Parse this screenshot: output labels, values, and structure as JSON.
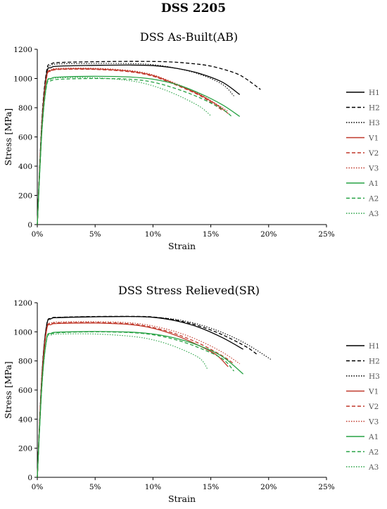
{
  "main_title": "DSS 2205",
  "chart_data": [
    {
      "type": "line",
      "title": "DSS As-Built(AB)",
      "xlabel": "Strain",
      "ylabel": "Stress [MPa]",
      "xlim": [
        0,
        0.25
      ],
      "ylim": [
        0,
        1200
      ],
      "x_ticks": [
        "0%",
        "5%",
        "10%",
        "15%",
        "20%",
        "25%"
      ],
      "y_ticks": [
        "0",
        "200",
        "400",
        "600",
        "800",
        "1000",
        "1200"
      ],
      "grid": false,
      "legend": "right",
      "series": [
        {
          "name": "H1",
          "color": "#000000",
          "dash": "solid",
          "points": [
            [
              0,
              0
            ],
            [
              0.004,
              700
            ],
            [
              0.008,
              1030
            ],
            [
              0.012,
              1075
            ],
            [
              0.02,
              1085
            ],
            [
              0.05,
              1090
            ],
            [
              0.08,
              1092
            ],
            [
              0.1,
              1088
            ],
            [
              0.12,
              1070
            ],
            [
              0.14,
              1035
            ],
            [
              0.16,
              975
            ],
            [
              0.175,
              890
            ]
          ]
        },
        {
          "name": "H2",
          "color": "#000000",
          "dash": "dashed",
          "points": [
            [
              0,
              0
            ],
            [
              0.004,
              720
            ],
            [
              0.008,
              1050
            ],
            [
              0.012,
              1100
            ],
            [
              0.02,
              1110
            ],
            [
              0.05,
              1115
            ],
            [
              0.08,
              1117
            ],
            [
              0.11,
              1115
            ],
            [
              0.13,
              1105
            ],
            [
              0.15,
              1085
            ],
            [
              0.17,
              1040
            ],
            [
              0.18,
              1000
            ],
            [
              0.193,
              925
            ]
          ]
        },
        {
          "name": "H3",
          "color": "#000000",
          "dash": "dotted",
          "points": [
            [
              0,
              0
            ],
            [
              0.004,
              710
            ],
            [
              0.008,
              1040
            ],
            [
              0.012,
              1090
            ],
            [
              0.02,
              1100
            ],
            [
              0.05,
              1103
            ],
            [
              0.08,
              1102
            ],
            [
              0.1,
              1095
            ],
            [
              0.12,
              1070
            ],
            [
              0.14,
              1030
            ],
            [
              0.16,
              960
            ],
            [
              0.17,
              880
            ]
          ]
        },
        {
          "name": "V1",
          "color": "#c0392b",
          "dash": "solid",
          "points": [
            [
              0,
              0
            ],
            [
              0.004,
              680
            ],
            [
              0.008,
              1010
            ],
            [
              0.012,
              1055
            ],
            [
              0.02,
              1065
            ],
            [
              0.05,
              1065
            ],
            [
              0.08,
              1050
            ],
            [
              0.1,
              1020
            ],
            [
              0.12,
              960
            ],
            [
              0.14,
              890
            ],
            [
              0.155,
              820
            ],
            [
              0.165,
              760
            ]
          ]
        },
        {
          "name": "V2",
          "color": "#c0392b",
          "dash": "dashed",
          "points": [
            [
              0,
              0
            ],
            [
              0.004,
              680
            ],
            [
              0.008,
              1005
            ],
            [
              0.012,
              1050
            ],
            [
              0.02,
              1062
            ],
            [
              0.05,
              1062
            ],
            [
              0.08,
              1046
            ],
            [
              0.1,
              1015
            ],
            [
              0.12,
              955
            ],
            [
              0.14,
              885
            ],
            [
              0.155,
              810
            ],
            [
              0.16,
              780
            ]
          ]
        },
        {
          "name": "V3",
          "color": "#c0392b",
          "dash": "dotted",
          "points": [
            [
              0,
              0
            ],
            [
              0.004,
              690
            ],
            [
              0.008,
              1015
            ],
            [
              0.012,
              1060
            ],
            [
              0.02,
              1070
            ],
            [
              0.05,
              1070
            ],
            [
              0.08,
              1055
            ],
            [
              0.1,
              1025
            ],
            [
              0.12,
              965
            ],
            [
              0.14,
              895
            ],
            [
              0.16,
              800
            ],
            [
              0.165,
              775
            ]
          ]
        },
        {
          "name": "A1",
          "color": "#27a244",
          "dash": "solid",
          "points": [
            [
              0,
              0
            ],
            [
              0.004,
              650
            ],
            [
              0.008,
              960
            ],
            [
              0.012,
              1000
            ],
            [
              0.02,
              1010
            ],
            [
              0.05,
              1015
            ],
            [
              0.08,
              1010
            ],
            [
              0.1,
              995
            ],
            [
              0.12,
              960
            ],
            [
              0.14,
              900
            ],
            [
              0.16,
              820
            ],
            [
              0.175,
              740
            ]
          ]
        },
        {
          "name": "A2",
          "color": "#27a244",
          "dash": "dashed",
          "points": [
            [
              0,
              0
            ],
            [
              0.004,
              640
            ],
            [
              0.008,
              950
            ],
            [
              0.012,
              985
            ],
            [
              0.02,
              995
            ],
            [
              0.05,
              1000
            ],
            [
              0.08,
              995
            ],
            [
              0.1,
              975
            ],
            [
              0.12,
              930
            ],
            [
              0.14,
              870
            ],
            [
              0.16,
              790
            ],
            [
              0.168,
              740
            ]
          ]
        },
        {
          "name": "A3",
          "color": "#27a244",
          "dash": "dotted",
          "points": [
            [
              0,
              0
            ],
            [
              0.004,
              640
            ],
            [
              0.008,
              955
            ],
            [
              0.012,
              995
            ],
            [
              0.02,
              1005
            ],
            [
              0.05,
              1005
            ],
            [
              0.08,
              985
            ],
            [
              0.1,
              950
            ],
            [
              0.12,
              890
            ],
            [
              0.14,
              810
            ],
            [
              0.15,
              745
            ]
          ]
        }
      ]
    },
    {
      "type": "line",
      "title": "DSS Stress Relieved(SR)",
      "xlabel": "Strain",
      "ylabel": "Stress [MPa]",
      "xlim": [
        0,
        0.25
      ],
      "ylim": [
        0,
        1200
      ],
      "x_ticks": [
        "0%",
        "5%",
        "10%",
        "15%",
        "20%",
        "25%"
      ],
      "y_ticks": [
        "0",
        "200",
        "400",
        "600",
        "800",
        "1000",
        "1200"
      ],
      "grid": false,
      "legend": "right",
      "series": [
        {
          "name": "H1",
          "color": "#000000",
          "dash": "solid",
          "points": [
            [
              0,
              0
            ],
            [
              0.004,
              700
            ],
            [
              0.008,
              1040
            ],
            [
              0.012,
              1090
            ],
            [
              0.02,
              1098
            ],
            [
              0.05,
              1103
            ],
            [
              0.08,
              1105
            ],
            [
              0.1,
              1100
            ],
            [
              0.12,
              1075
            ],
            [
              0.14,
              1030
            ],
            [
              0.16,
              960
            ],
            [
              0.178,
              880
            ]
          ]
        },
        {
          "name": "H2",
          "color": "#000000",
          "dash": "dashed",
          "points": [
            [
              0,
              0
            ],
            [
              0.004,
              710
            ],
            [
              0.008,
              1045
            ],
            [
              0.012,
              1093
            ],
            [
              0.02,
              1100
            ],
            [
              0.05,
              1105
            ],
            [
              0.08,
              1106
            ],
            [
              0.1,
              1102
            ],
            [
              0.12,
              1080
            ],
            [
              0.14,
              1040
            ],
            [
              0.16,
              980
            ],
            [
              0.18,
              900
            ],
            [
              0.19,
              845
            ]
          ]
        },
        {
          "name": "H3",
          "color": "#000000",
          "dash": "dotted",
          "points": [
            [
              0,
              0
            ],
            [
              0.004,
              710
            ],
            [
              0.008,
              1040
            ],
            [
              0.012,
              1090
            ],
            [
              0.02,
              1100
            ],
            [
              0.05,
              1104
            ],
            [
              0.08,
              1105
            ],
            [
              0.1,
              1100
            ],
            [
              0.12,
              1085
            ],
            [
              0.14,
              1050
            ],
            [
              0.16,
              995
            ],
            [
              0.18,
              920
            ],
            [
              0.202,
              810
            ]
          ]
        },
        {
          "name": "V1",
          "color": "#c0392b",
          "dash": "solid",
          "points": [
            [
              0,
              0
            ],
            [
              0.004,
              680
            ],
            [
              0.008,
              1010
            ],
            [
              0.012,
              1050
            ],
            [
              0.02,
              1058
            ],
            [
              0.05,
              1060
            ],
            [
              0.08,
              1050
            ],
            [
              0.1,
              1025
            ],
            [
              0.12,
              975
            ],
            [
              0.14,
              905
            ],
            [
              0.155,
              840
            ],
            [
              0.165,
              760
            ]
          ]
        },
        {
          "name": "V2",
          "color": "#c0392b",
          "dash": "dashed",
          "points": [
            [
              0,
              0
            ],
            [
              0.004,
              685
            ],
            [
              0.008,
              1015
            ],
            [
              0.012,
              1055
            ],
            [
              0.02,
              1062
            ],
            [
              0.05,
              1064
            ],
            [
              0.08,
              1055
            ],
            [
              0.1,
              1030
            ],
            [
              0.12,
              985
            ],
            [
              0.14,
              920
            ],
            [
              0.16,
              835
            ],
            [
              0.17,
              780
            ]
          ]
        },
        {
          "name": "V3",
          "color": "#c0392b",
          "dash": "dotted",
          "points": [
            [
              0,
              0
            ],
            [
              0.004,
              690
            ],
            [
              0.008,
              1020
            ],
            [
              0.012,
              1060
            ],
            [
              0.02,
              1068
            ],
            [
              0.05,
              1070
            ],
            [
              0.08,
              1062
            ],
            [
              0.1,
              1040
            ],
            [
              0.12,
              1000
            ],
            [
              0.14,
              940
            ],
            [
              0.16,
              860
            ],
            [
              0.175,
              780
            ]
          ]
        },
        {
          "name": "A1",
          "color": "#27a244",
          "dash": "solid",
          "points": [
            [
              0,
              0
            ],
            [
              0.004,
              640
            ],
            [
              0.008,
              950
            ],
            [
              0.012,
              990
            ],
            [
              0.02,
              998
            ],
            [
              0.05,
              1002
            ],
            [
              0.08,
              998
            ],
            [
              0.1,
              985
            ],
            [
              0.12,
              955
            ],
            [
              0.14,
              905
            ],
            [
              0.16,
              830
            ],
            [
              0.178,
              710
            ]
          ]
        },
        {
          "name": "A2",
          "color": "#27a244",
          "dash": "dashed",
          "points": [
            [
              0,
              0
            ],
            [
              0.004,
              635
            ],
            [
              0.008,
              945
            ],
            [
              0.012,
              985
            ],
            [
              0.02,
              995
            ],
            [
              0.05,
              1000
            ],
            [
              0.08,
              995
            ],
            [
              0.1,
              980
            ],
            [
              0.12,
              945
            ],
            [
              0.14,
              890
            ],
            [
              0.16,
              815
            ],
            [
              0.17,
              730
            ]
          ]
        },
        {
          "name": "A3",
          "color": "#27a244",
          "dash": "dotted",
          "points": [
            [
              0,
              0
            ],
            [
              0.004,
              630
            ],
            [
              0.008,
              940
            ],
            [
              0.012,
              978
            ],
            [
              0.02,
              985
            ],
            [
              0.05,
              985
            ],
            [
              0.08,
              970
            ],
            [
              0.1,
              945
            ],
            [
              0.12,
              895
            ],
            [
              0.14,
              820
            ],
            [
              0.147,
              745
            ]
          ]
        }
      ]
    }
  ]
}
